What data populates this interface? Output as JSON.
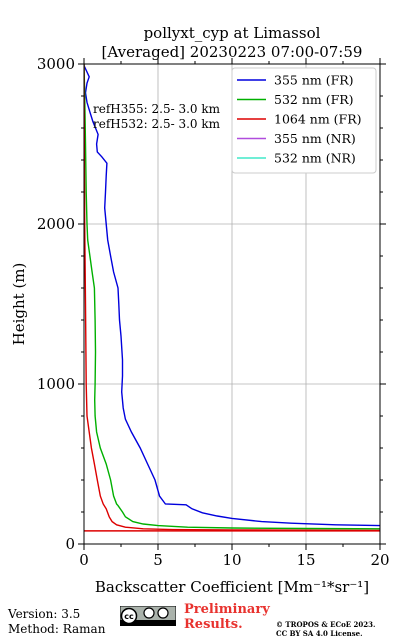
{
  "chart_data": {
    "type": "line",
    "title_line1": "pollyxt_cyp at Limassol",
    "title_line2": "[Averaged] 20230223 07:00-07:59",
    "xlabel": "Backscatter Coefficient [Mm⁻¹*sr⁻¹]",
    "ylabel": "Height (m)",
    "xlim": [
      0,
      20
    ],
    "ylim": [
      0,
      3000
    ],
    "x_ticks": [
      0,
      5,
      10,
      15,
      20
    ],
    "y_ticks": [
      0,
      1000,
      2000,
      3000
    ],
    "grid": true,
    "legend_position": "top-right",
    "series": [
      {
        "name": "355 nm (FR)",
        "color": "#0000dd",
        "points": [
          [
            20,
            115
          ],
          [
            17,
            120
          ],
          [
            14,
            130
          ],
          [
            12,
            140
          ],
          [
            10,
            160
          ],
          [
            9,
            175
          ],
          [
            8,
            195
          ],
          [
            7.3,
            220
          ],
          [
            6.9,
            245
          ],
          [
            5.5,
            250
          ],
          [
            5.1,
            300
          ],
          [
            4.8,
            400
          ],
          [
            4.3,
            500
          ],
          [
            3.8,
            600
          ],
          [
            3.2,
            700
          ],
          [
            2.8,
            780
          ],
          [
            2.65,
            850
          ],
          [
            2.55,
            950
          ],
          [
            2.6,
            1050
          ],
          [
            2.6,
            1150
          ],
          [
            2.5,
            1300
          ],
          [
            2.4,
            1400
          ],
          [
            2.35,
            1500
          ],
          [
            2.3,
            1600
          ],
          [
            2.0,
            1700
          ],
          [
            1.8,
            1800
          ],
          [
            1.6,
            1900
          ],
          [
            1.5,
            2000
          ],
          [
            1.4,
            2100
          ],
          [
            1.45,
            2200
          ],
          [
            1.5,
            2300
          ],
          [
            1.55,
            2380
          ],
          [
            1.2,
            2420
          ],
          [
            0.9,
            2450
          ],
          [
            0.85,
            2500
          ],
          [
            0.95,
            2560
          ],
          [
            0.6,
            2640
          ],
          [
            0.4,
            2700
          ],
          [
            0.2,
            2760
          ],
          [
            0.1,
            2820
          ],
          [
            0.2,
            2880
          ],
          [
            0.35,
            2920
          ],
          [
            0.2,
            2950
          ],
          [
            0.0,
            2990
          ]
        ]
      },
      {
        "name": "532 nm (FR)",
        "color": "#00b000",
        "points": [
          [
            20,
            95
          ],
          [
            15,
            97
          ],
          [
            10,
            100
          ],
          [
            7,
            105
          ],
          [
            5,
            115
          ],
          [
            4,
            125
          ],
          [
            3.3,
            140
          ],
          [
            2.8,
            170
          ],
          [
            2.6,
            200
          ],
          [
            2.3,
            240
          ],
          [
            2.2,
            250
          ],
          [
            2.0,
            300
          ],
          [
            1.8,
            400
          ],
          [
            1.5,
            500
          ],
          [
            1.1,
            600
          ],
          [
            0.85,
            700
          ],
          [
            0.75,
            800
          ],
          [
            0.72,
            900
          ],
          [
            0.75,
            1000
          ],
          [
            0.78,
            1200
          ],
          [
            0.75,
            1400
          ],
          [
            0.7,
            1600
          ],
          [
            0.55,
            1700
          ],
          [
            0.4,
            1800
          ],
          [
            0.25,
            1900
          ],
          [
            0.2,
            2000
          ],
          [
            0.15,
            2200
          ],
          [
            0.1,
            2500
          ],
          [
            0.05,
            2800
          ],
          [
            0.0,
            3000
          ]
        ]
      },
      {
        "name": "1064 nm (FR)",
        "color": "#dd0000",
        "points": [
          [
            20,
            85
          ],
          [
            15,
            86
          ],
          [
            10,
            88
          ],
          [
            6,
            90
          ],
          [
            4,
            95
          ],
          [
            2.8,
            105
          ],
          [
            2.2,
            120
          ],
          [
            1.9,
            140
          ],
          [
            1.7,
            170
          ],
          [
            1.5,
            220
          ],
          [
            1.3,
            250
          ],
          [
            1.1,
            300
          ],
          [
            0.9,
            400
          ],
          [
            0.7,
            500
          ],
          [
            0.5,
            600
          ],
          [
            0.35,
            700
          ],
          [
            0.2,
            800
          ],
          [
            0.15,
            1000
          ],
          [
            0.1,
            1500
          ],
          [
            0.05,
            2000
          ],
          [
            0.02,
            2500
          ],
          [
            0.0,
            3000
          ]
        ]
      },
      {
        "name": "355 nm (NR)",
        "color": "#b04cdd",
        "points": []
      },
      {
        "name": "532 nm (NR)",
        "color": "#40e8c8",
        "points": []
      }
    ],
    "hline": {
      "y": 82,
      "color": "#dd0000"
    },
    "annotations": [
      "refH355:  2.5- 3.0 km",
      "refH532:  2.5- 3.0 km"
    ]
  },
  "footer": {
    "version": "Version: 3.5",
    "method": "Method: Raman",
    "preliminary_line1": "Preliminary",
    "preliminary_line2": "Results.",
    "copyright_line1": "© TROPOS & ECoE 2023.",
    "copyright_line2": "CC BY SA 4.0 License."
  }
}
